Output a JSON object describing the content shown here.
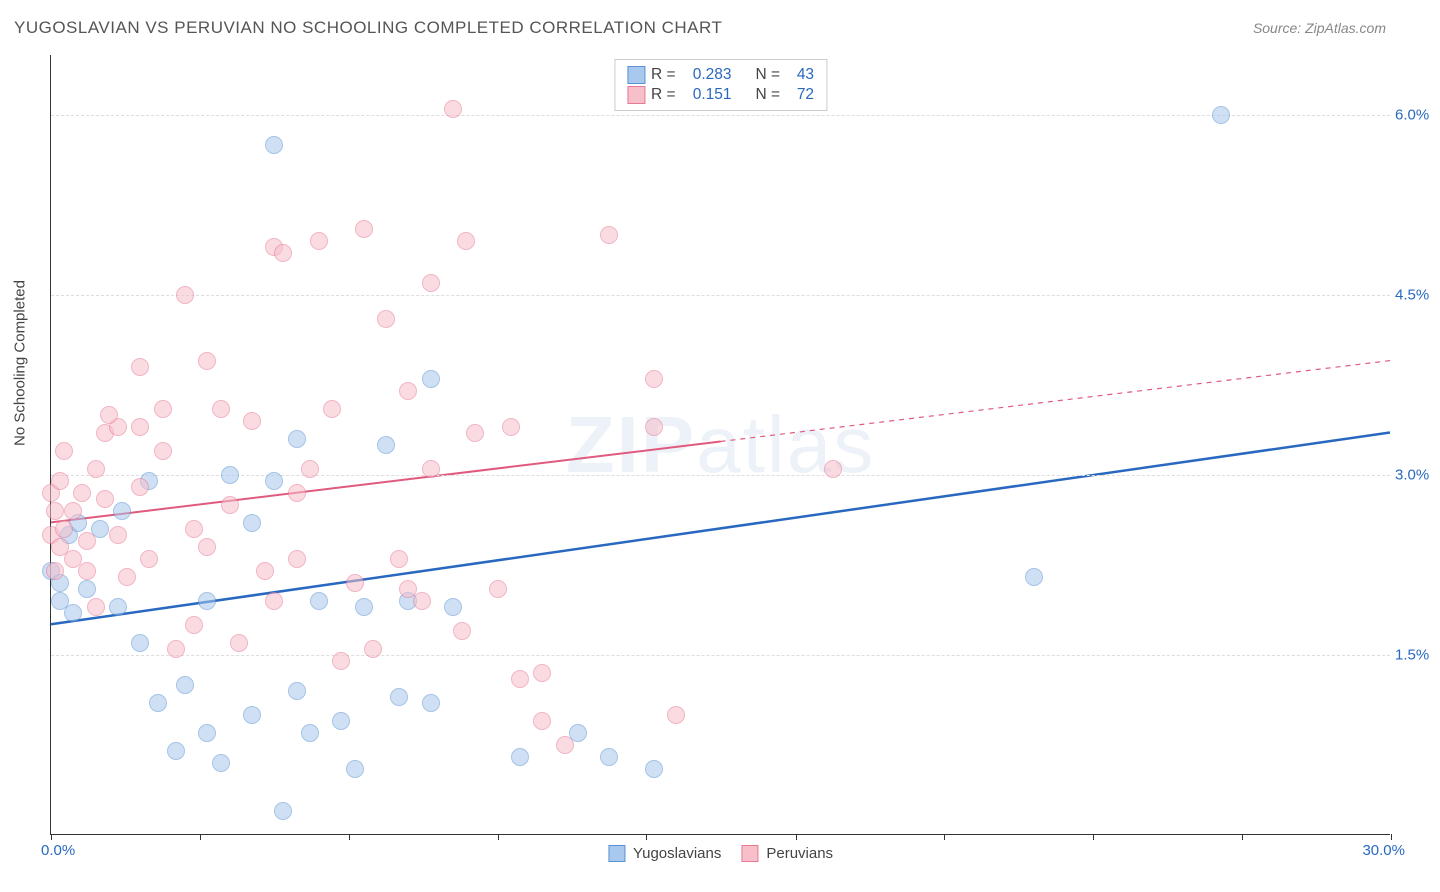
{
  "title": "YUGOSLAVIAN VS PERUVIAN NO SCHOOLING COMPLETED CORRELATION CHART",
  "source": "Source: ZipAtlas.com",
  "y_axis_label": "No Schooling Completed",
  "watermark": "ZIPatlas",
  "chart": {
    "type": "scatter",
    "xlim": [
      0,
      30
    ],
    "ylim": [
      0,
      6.5
    ],
    "x_min_label": "0.0%",
    "x_max_label": "30.0%",
    "x_label_color": "#2968c0",
    "y_gridlines": [
      1.5,
      3.0,
      4.5,
      6.0
    ],
    "y_tick_labels": [
      "1.5%",
      "3.0%",
      "4.5%",
      "6.0%"
    ],
    "y_label_color": "#2968c0",
    "x_ticks": [
      0,
      3.33,
      6.67,
      10,
      13.33,
      16.67,
      20,
      23.33,
      26.67,
      30
    ],
    "background_color": "#ffffff",
    "grid_color": "#dddddd",
    "marker_radius": 9,
    "marker_alpha": 0.55,
    "series": [
      {
        "name": "Yugoslavians",
        "color_fill": "#a8c8ed",
        "color_stroke": "#5a93d4",
        "r_value": "0.283",
        "n_value": "43",
        "trend": {
          "y_at_x0": 1.75,
          "y_at_xmax": 3.35,
          "color": "#2968c0",
          "width": 2.5,
          "solid_until_x": 30
        },
        "points": [
          [
            0.0,
            2.2
          ],
          [
            0.2,
            2.1
          ],
          [
            0.2,
            1.95
          ],
          [
            0.4,
            2.5
          ],
          [
            0.5,
            1.85
          ],
          [
            0.6,
            2.6
          ],
          [
            0.8,
            2.05
          ],
          [
            1.1,
            2.55
          ],
          [
            1.5,
            1.9
          ],
          [
            1.6,
            2.7
          ],
          [
            2.0,
            1.6
          ],
          [
            2.2,
            2.95
          ],
          [
            2.4,
            1.1
          ],
          [
            2.8,
            0.7
          ],
          [
            3.0,
            1.25
          ],
          [
            3.5,
            1.95
          ],
          [
            3.5,
            0.85
          ],
          [
            3.8,
            0.6
          ],
          [
            4.0,
            3.0
          ],
          [
            4.5,
            2.6
          ],
          [
            4.5,
            1.0
          ],
          [
            5.0,
            5.75
          ],
          [
            5.0,
            2.95
          ],
          [
            5.2,
            0.2
          ],
          [
            5.5,
            3.3
          ],
          [
            5.5,
            1.2
          ],
          [
            5.8,
            0.85
          ],
          [
            6.0,
            1.95
          ],
          [
            6.5,
            0.95
          ],
          [
            7.0,
            1.9
          ],
          [
            7.5,
            3.25
          ],
          [
            7.8,
            1.15
          ],
          [
            8.0,
            1.95
          ],
          [
            8.5,
            3.8
          ],
          [
            9.0,
            1.9
          ],
          [
            10.5,
            0.65
          ],
          [
            11.8,
            0.85
          ],
          [
            12.5,
            0.65
          ],
          [
            13.5,
            0.55
          ],
          [
            22.0,
            2.15
          ],
          [
            26.2,
            6.0
          ],
          [
            8.5,
            1.1
          ],
          [
            6.8,
            0.55
          ]
        ]
      },
      {
        "name": "Peruvians",
        "color_fill": "#f6bfca",
        "color_stroke": "#e87a96",
        "r_value": "0.151",
        "n_value": "72",
        "trend": {
          "y_at_x0": 2.6,
          "y_at_xmax": 3.95,
          "color": "#e05a7e",
          "width": 2,
          "solid_until_x": 15
        },
        "points": [
          [
            0.0,
            2.85
          ],
          [
            0.0,
            2.5
          ],
          [
            0.1,
            2.7
          ],
          [
            0.1,
            2.2
          ],
          [
            0.2,
            2.95
          ],
          [
            0.2,
            2.4
          ],
          [
            0.3,
            2.55
          ],
          [
            0.3,
            3.2
          ],
          [
            0.5,
            2.7
          ],
          [
            0.5,
            2.3
          ],
          [
            0.7,
            2.85
          ],
          [
            0.8,
            2.45
          ],
          [
            0.8,
            2.2
          ],
          [
            1.0,
            3.05
          ],
          [
            1.0,
            1.9
          ],
          [
            1.2,
            2.8
          ],
          [
            1.2,
            3.35
          ],
          [
            1.5,
            2.5
          ],
          [
            1.5,
            3.4
          ],
          [
            1.7,
            2.15
          ],
          [
            2.0,
            3.4
          ],
          [
            2.0,
            2.9
          ],
          [
            2.2,
            2.3
          ],
          [
            2.5,
            3.55
          ],
          [
            2.5,
            3.2
          ],
          [
            2.8,
            1.55
          ],
          [
            3.0,
            4.5
          ],
          [
            3.2,
            2.55
          ],
          [
            3.2,
            1.75
          ],
          [
            3.5,
            2.4
          ],
          [
            3.8,
            3.55
          ],
          [
            4.0,
            2.75
          ],
          [
            4.2,
            1.6
          ],
          [
            4.5,
            3.45
          ],
          [
            4.8,
            2.2
          ],
          [
            5.0,
            4.9
          ],
          [
            5.2,
            4.85
          ],
          [
            5.5,
            2.85
          ],
          [
            5.5,
            2.3
          ],
          [
            5.8,
            3.05
          ],
          [
            6.0,
            4.95
          ],
          [
            6.3,
            3.55
          ],
          [
            6.5,
            1.45
          ],
          [
            6.8,
            2.1
          ],
          [
            7.0,
            5.05
          ],
          [
            7.2,
            1.55
          ],
          [
            7.5,
            4.3
          ],
          [
            7.8,
            2.3
          ],
          [
            8.0,
            3.7
          ],
          [
            8.0,
            2.05
          ],
          [
            8.3,
            1.95
          ],
          [
            8.5,
            4.6
          ],
          [
            8.5,
            3.05
          ],
          [
            9.0,
            6.05
          ],
          [
            9.2,
            1.7
          ],
          [
            9.3,
            4.95
          ],
          [
            9.5,
            3.35
          ],
          [
            10.0,
            2.05
          ],
          [
            10.3,
            3.4
          ],
          [
            10.5,
            1.3
          ],
          [
            11.0,
            0.95
          ],
          [
            11.0,
            1.35
          ],
          [
            11.5,
            0.75
          ],
          [
            12.5,
            5.0
          ],
          [
            13.5,
            3.8
          ],
          [
            14.0,
            1.0
          ],
          [
            13.5,
            3.4
          ],
          [
            17.5,
            3.05
          ],
          [
            5.0,
            1.95
          ],
          [
            3.5,
            3.95
          ],
          [
            2.0,
            3.9
          ],
          [
            1.3,
            3.5
          ]
        ]
      }
    ]
  },
  "legend": {
    "r_label": "R =",
    "n_label": "N =",
    "text_color": "#444444",
    "value_color": "#2968c0"
  },
  "bottom_legend": {
    "items": [
      "Yugoslavians",
      "Peruvians"
    ]
  }
}
